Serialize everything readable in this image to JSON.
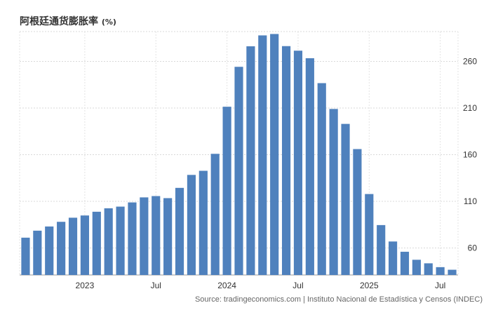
{
  "chart_data": {
    "type": "bar",
    "title": "阿根廷通货膨胀率",
    "unit": "(%)",
    "source": "Source: tradingeconomics.com | Instituto Nacional de Estadística y Censos (INDEC)",
    "color": "#4f81bd",
    "ylim": [
      31,
      292
    ],
    "y_ticks": [
      60,
      110,
      160,
      210,
      260
    ],
    "y_tick_labels": [
      "60",
      "110",
      "160",
      "210",
      "260"
    ],
    "x_tick_labels": [
      {
        "label": "2023",
        "index": 5.5
      },
      {
        "label": "Jul",
        "index": 11.5
      },
      {
        "label": "2024",
        "index": 17.5
      },
      {
        "label": "Jul",
        "index": 23.5
      },
      {
        "label": "2025",
        "index": 29.5
      },
      {
        "label": "Jul",
        "index": 35.5
      }
    ],
    "grid": true,
    "categories": [
      "2022-07",
      "2022-08",
      "2022-09",
      "2022-10",
      "2022-11",
      "2022-12",
      "2023-01",
      "2023-02",
      "2023-03",
      "2023-04",
      "2023-05",
      "2023-06",
      "2023-07",
      "2023-08",
      "2023-09",
      "2023-10",
      "2023-11",
      "2023-12",
      "2024-01",
      "2024-02",
      "2024-03",
      "2024-04",
      "2024-05",
      "2024-06",
      "2024-07",
      "2024-08",
      "2024-09",
      "2024-10",
      "2024-11",
      "2024-12",
      "2025-01",
      "2025-02",
      "2025-03",
      "2025-04",
      "2025-05",
      "2025-06",
      "2025-07"
    ],
    "values": [
      71.0,
      78.5,
      83.0,
      88.0,
      92.4,
      94.8,
      98.8,
      102.5,
      104.3,
      108.8,
      114.2,
      115.6,
      113.4,
      124.4,
      138.3,
      142.7,
      160.9,
      211.4,
      254.2,
      276.2,
      287.9,
      289.4,
      276.4,
      271.5,
      263.4,
      236.7,
      209.0,
      193.0,
      166.0,
      117.8,
      84.5,
      66.9,
      55.9,
      47.3,
      43.5,
      39.4,
      36.6
    ]
  }
}
